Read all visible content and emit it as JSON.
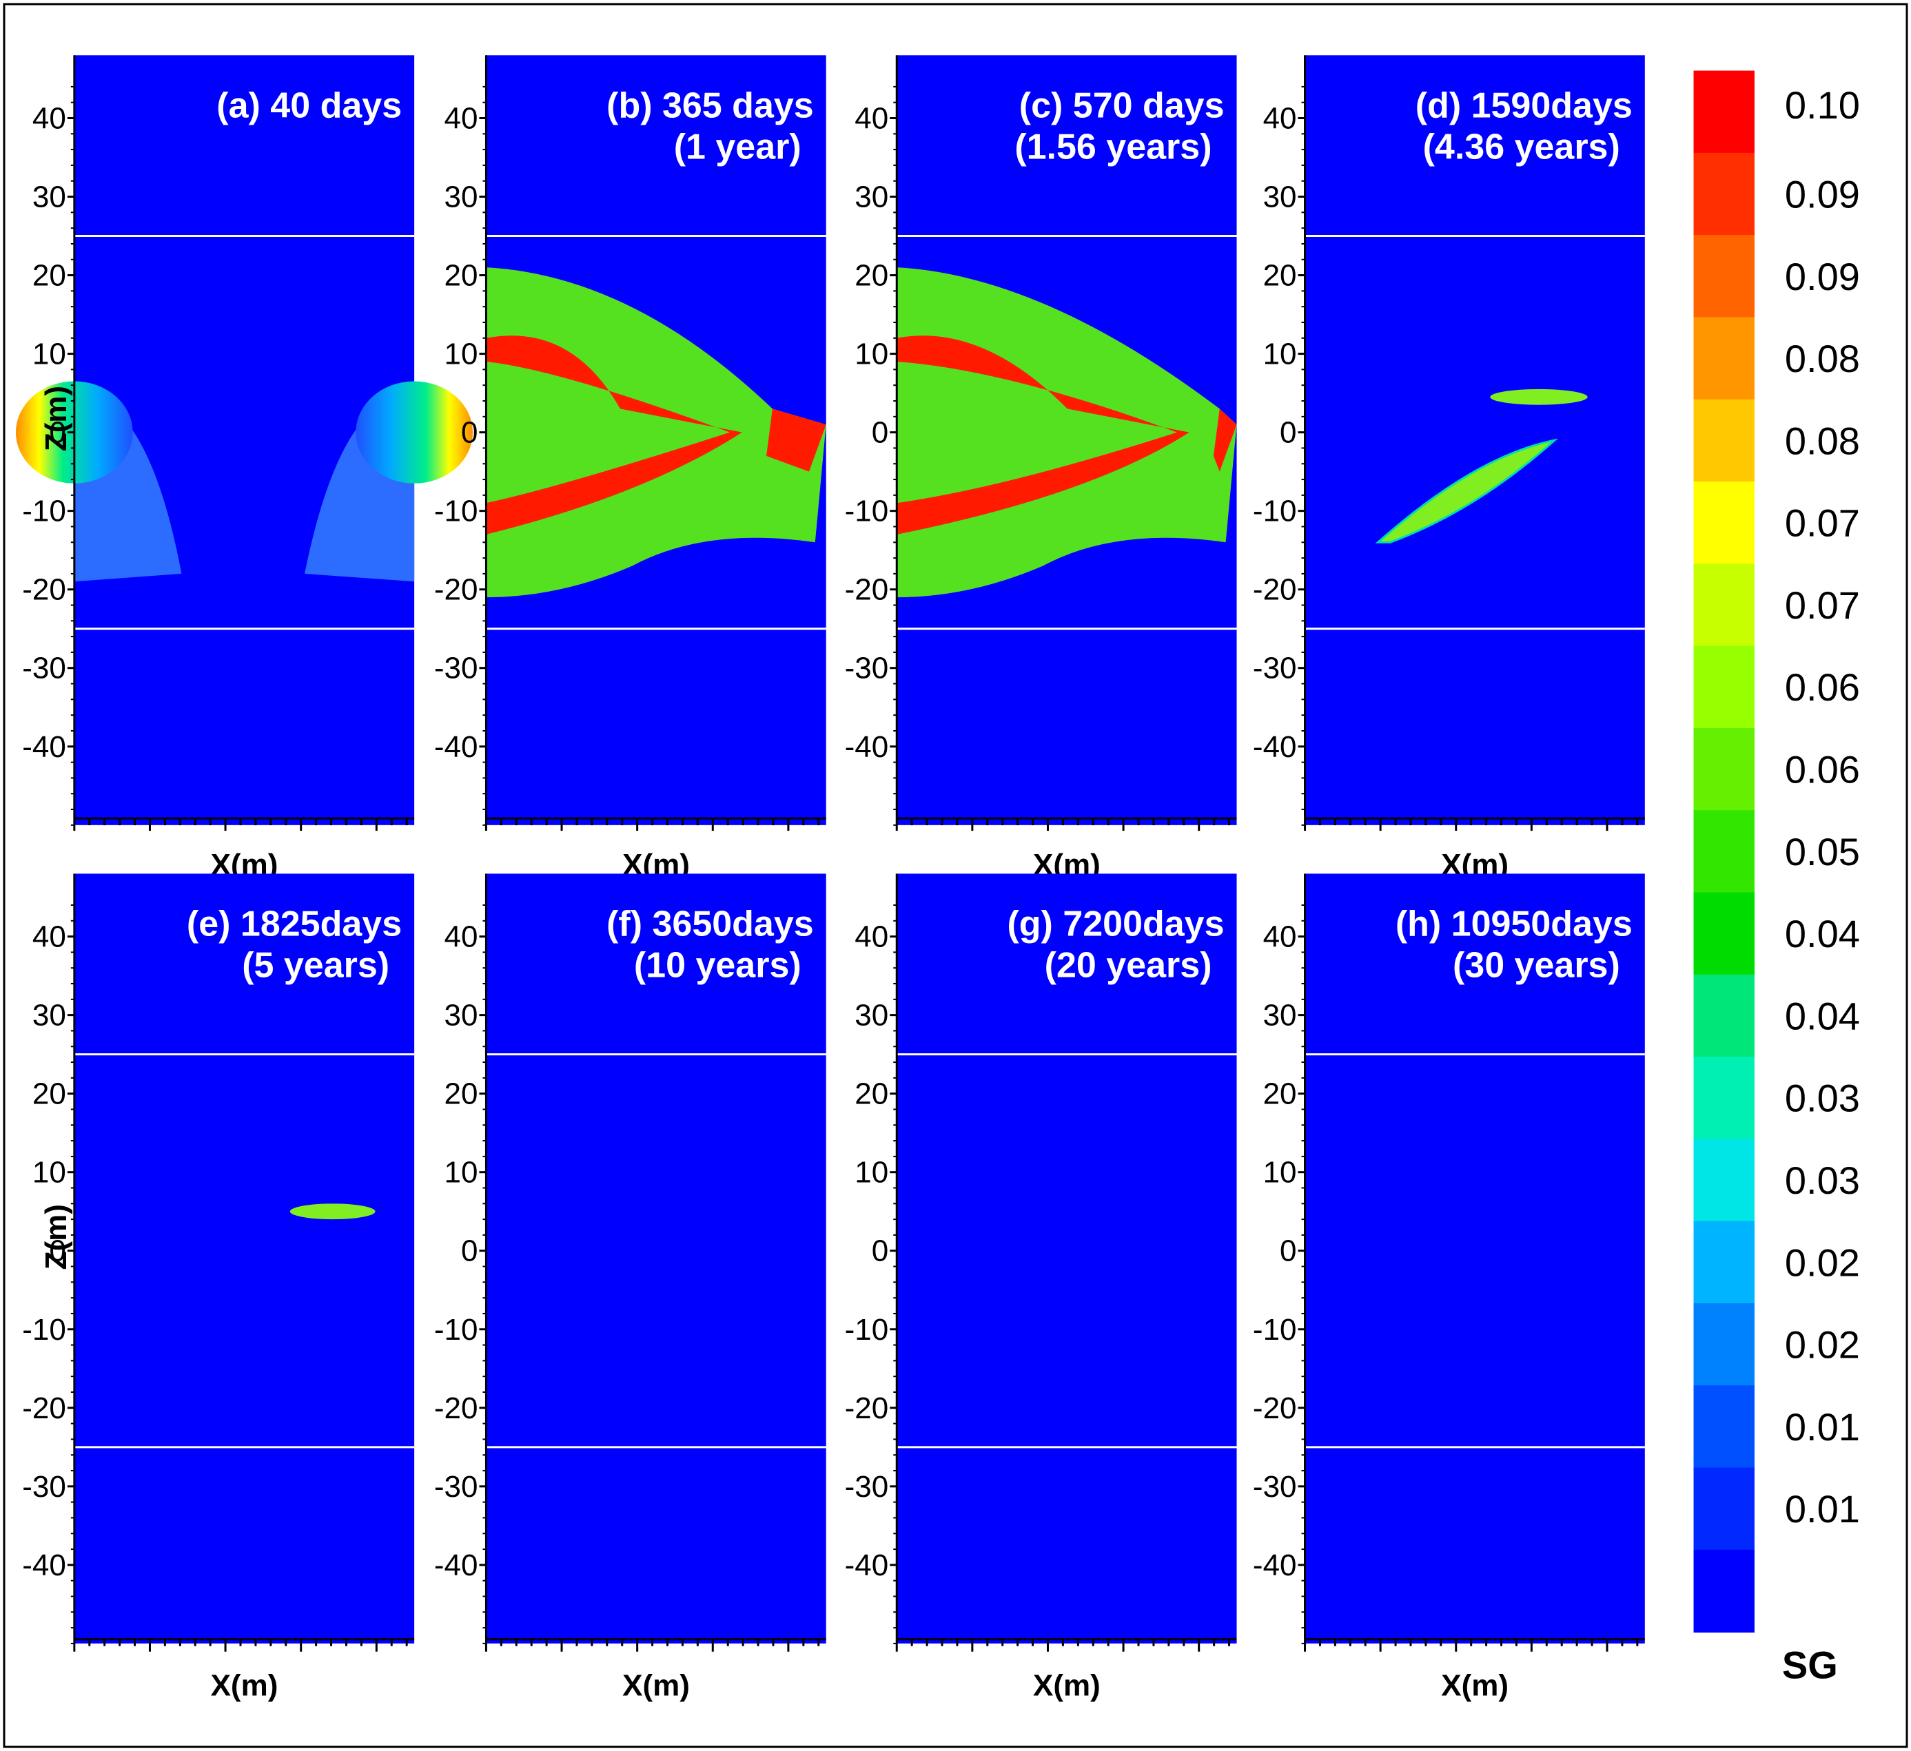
{
  "chart_data": {
    "type": "heatmap",
    "variable": "SG",
    "xlabel": "X(m)",
    "ylabel": "Z(m)",
    "ylim": [
      -50,
      48
    ],
    "yticks": [
      40,
      30,
      20,
      10,
      0,
      -10,
      -20,
      -30,
      -40
    ],
    "layer_boundaries_z": [
      25,
      -25
    ],
    "background_color": "#0000ff",
    "panels": [
      {
        "id": "a",
        "line1": "(a) 40 days",
        "line2": ""
      },
      {
        "id": "b",
        "line1": "(b) 365 days",
        "line2": "(1 year)"
      },
      {
        "id": "c",
        "line1": "(c) 570 days",
        "line2": "(1.56 years)"
      },
      {
        "id": "d",
        "line1": "(d) 1590days",
        "line2": "(4.36 years)"
      },
      {
        "id": "e",
        "line1": "(e) 1825days",
        "line2": "(5 years)"
      },
      {
        "id": "f",
        "line1": "(f) 3650days",
        "line2": "(10 years)"
      },
      {
        "id": "g",
        "line1": "(g) 7200days",
        "line2": "(20 years)"
      },
      {
        "id": "h",
        "line1": "(h) 10950days",
        "line2": "(30 years)"
      }
    ],
    "colorbar": {
      "title": "SG",
      "labels": [
        "0.10",
        "0.09",
        "0.09",
        "0.08",
        "0.08",
        "0.07",
        "0.07",
        "0.06",
        "0.06",
        "0.05",
        "0.04",
        "0.04",
        "0.03",
        "0.03",
        "0.02",
        "0.02",
        "0.01",
        "0.01"
      ],
      "colors": [
        "#ff0000",
        "#ff2f00",
        "#ff6400",
        "#ff9600",
        "#ffc800",
        "#ffff00",
        "#c8ff00",
        "#96ff00",
        "#64f000",
        "#32e600",
        "#00dc00",
        "#00e678",
        "#00f0b4",
        "#00e6e6",
        "#00b4ff",
        "#0082ff",
        "#0050ff",
        "#0028ff",
        "#0000ff"
      ]
    }
  }
}
